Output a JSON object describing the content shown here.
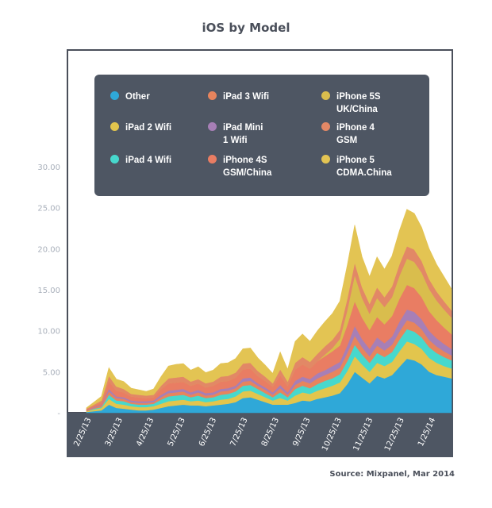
{
  "title": "iOS by Model",
  "source": "Source: Mixpanel, Mar 2014",
  "chart_data": {
    "type": "area",
    "stacked": true,
    "title": "iOS by Model",
    "ylim": [
      0,
      32
    ],
    "yticks": [
      "",
      "5.00",
      "10.00",
      "15.00",
      "20.00",
      "25.00",
      "30.00"
    ],
    "ytick_values": [
      0,
      5,
      10,
      15,
      20,
      25,
      30
    ],
    "x_tick_labels": [
      "2/25/13",
      "3/25/13",
      "4/25/13",
      "5/25/13",
      "6/25/13",
      "7/25/13",
      "8/25/13",
      "9/25/13",
      "10/25/13",
      "11/25/13",
      "12/25/13",
      "1/25/14"
    ],
    "x_tick_positions": [
      0.2,
      4.4,
      8.6,
      12.8,
      17.0,
      21.2,
      25.4,
      29.6,
      33.8,
      38.0,
      42.2,
      46.4
    ],
    "x_range": [
      0,
      49
    ],
    "x_index": [
      0,
      1,
      2,
      3,
      4,
      5,
      6,
      7,
      8,
      9,
      10,
      11,
      12,
      13,
      14,
      15,
      16,
      17,
      18,
      19,
      20,
      21,
      22,
      23,
      24,
      25,
      26,
      27,
      28,
      29,
      30,
      31,
      32,
      33,
      34,
      35,
      36,
      37,
      38,
      39,
      40,
      41,
      42,
      43,
      44,
      45,
      46,
      47,
      48,
      49
    ],
    "legend_position": "top",
    "series": [
      {
        "name": "Other",
        "color": "#2fa8d8",
        "values": [
          0.1,
          0.2,
          0.3,
          1.0,
          0.6,
          0.5,
          0.4,
          0.3,
          0.3,
          0.4,
          0.6,
          0.8,
          0.9,
          1.0,
          0.9,
          0.9,
          0.8,
          0.9,
          1.0,
          1.1,
          1.3,
          1.8,
          1.9,
          1.6,
          1.3,
          1.0,
          1.0,
          1.0,
          1.2,
          1.5,
          1.4,
          1.7,
          1.9,
          2.1,
          2.4,
          3.5,
          5.0,
          4.3,
          3.6,
          4.5,
          4.2,
          4.6,
          5.6,
          6.6,
          6.4,
          5.9,
          5.0,
          4.6,
          4.4,
          4.2
        ]
      },
      {
        "name": "iPad 2 Wifi",
        "color": "#e2c54d",
        "values": [
          0.1,
          0.2,
          0.3,
          0.7,
          0.5,
          0.5,
          0.4,
          0.4,
          0.4,
          0.4,
          0.5,
          0.6,
          0.6,
          0.6,
          0.5,
          0.6,
          0.5,
          0.5,
          0.6,
          0.6,
          0.7,
          0.8,
          0.8,
          0.7,
          0.6,
          0.5,
          0.8,
          0.5,
          0.9,
          1.0,
          0.9,
          1.0,
          1.1,
          1.2,
          1.3,
          1.6,
          1.9,
          1.6,
          1.4,
          1.6,
          1.5,
          1.6,
          1.9,
          2.1,
          2.0,
          1.9,
          1.7,
          1.5,
          1.3,
          1.2
        ]
      },
      {
        "name": "iPad 4 Wifi",
        "color": "#47d8cd",
        "values": [
          0.0,
          0.1,
          0.1,
          0.5,
          0.4,
          0.4,
          0.3,
          0.3,
          0.3,
          0.3,
          0.5,
          0.6,
          0.6,
          0.6,
          0.5,
          0.6,
          0.5,
          0.5,
          0.6,
          0.6,
          0.6,
          0.7,
          0.7,
          0.6,
          0.5,
          0.4,
          0.7,
          0.4,
          0.8,
          0.8,
          0.7,
          0.8,
          0.9,
          0.9,
          1.0,
          1.2,
          1.4,
          1.2,
          1.1,
          1.2,
          1.1,
          1.2,
          1.4,
          1.5,
          1.5,
          1.4,
          1.3,
          1.2,
          1.1,
          1.0
        ]
      },
      {
        "name": "iPad 3 Wifi",
        "color": "#e7845d",
        "values": [
          0.1,
          0.1,
          0.2,
          0.4,
          0.3,
          0.3,
          0.2,
          0.2,
          0.2,
          0.2,
          0.3,
          0.4,
          0.4,
          0.4,
          0.3,
          0.4,
          0.3,
          0.3,
          0.4,
          0.4,
          0.4,
          0.5,
          0.5,
          0.4,
          0.4,
          0.3,
          0.5,
          0.3,
          0.5,
          0.6,
          0.6,
          0.7,
          0.7,
          0.8,
          0.8,
          1.0,
          1.1,
          0.9,
          0.8,
          0.9,
          0.8,
          0.9,
          1.0,
          1.1,
          1.1,
          1.0,
          0.9,
          0.8,
          0.7,
          0.6
        ]
      },
      {
        "name": "iPad Mini\n1 Wifi",
        "color": "#a77fb6",
        "values": [
          0.0,
          0.1,
          0.1,
          0.3,
          0.2,
          0.2,
          0.2,
          0.2,
          0.2,
          0.2,
          0.3,
          0.3,
          0.3,
          0.3,
          0.3,
          0.3,
          0.3,
          0.3,
          0.3,
          0.3,
          0.3,
          0.4,
          0.4,
          0.3,
          0.3,
          0.3,
          0.4,
          0.3,
          0.5,
          0.5,
          0.5,
          0.6,
          0.6,
          0.7,
          0.7,
          0.9,
          1.2,
          1.0,
          0.9,
          1.0,
          0.9,
          1.0,
          1.2,
          1.3,
          1.3,
          1.2,
          1.1,
          1.0,
          0.9,
          0.8
        ]
      },
      {
        "name": "iPhone 4S\nGSM/China",
        "color": "#e97d63",
        "values": [
          0.1,
          0.2,
          0.3,
          1.0,
          0.7,
          0.6,
          0.5,
          0.5,
          0.4,
          0.4,
          0.7,
          0.9,
          0.9,
          0.9,
          0.8,
          0.8,
          0.7,
          0.8,
          0.9,
          0.9,
          1.0,
          1.1,
          1.1,
          0.9,
          0.8,
          0.7,
          1.2,
          0.8,
          1.4,
          1.5,
          1.3,
          1.5,
          1.7,
          1.8,
          2.0,
          2.5,
          3.0,
          2.6,
          2.3,
          2.5,
          2.3,
          2.5,
          2.8,
          3.0,
          2.9,
          2.7,
          2.4,
          2.2,
          2.0,
          1.8
        ]
      },
      {
        "name": "iPhone 5S\nUK/China",
        "color": "#d9bd4d",
        "values": [
          0,
          0,
          0,
          0,
          0,
          0,
          0,
          0,
          0,
          0,
          0,
          0,
          0,
          0,
          0,
          0,
          0,
          0,
          0,
          0,
          0,
          0,
          0,
          0,
          0,
          0,
          0,
          0,
          0,
          0,
          0,
          0,
          0.2,
          0.4,
          0.8,
          1.8,
          3.2,
          2.4,
          2.0,
          2.3,
          2.1,
          2.3,
          2.8,
          3.2,
          3.2,
          3.0,
          2.7,
          2.4,
          2.2,
          2.0
        ]
      },
      {
        "name": "iPhone 4\nGSM",
        "color": "#e28866",
        "values": [
          0.1,
          0.1,
          0.2,
          0.6,
          0.5,
          0.4,
          0.3,
          0.3,
          0.3,
          0.3,
          0.4,
          0.6,
          0.6,
          0.6,
          0.5,
          0.5,
          0.5,
          0.5,
          0.6,
          0.6,
          0.6,
          0.7,
          0.7,
          0.6,
          0.5,
          0.4,
          0.7,
          0.5,
          0.8,
          0.9,
          0.8,
          0.9,
          1.0,
          1.0,
          1.1,
          1.4,
          1.5,
          1.3,
          1.2,
          1.3,
          1.2,
          1.3,
          1.4,
          1.5,
          1.5,
          1.4,
          1.2,
          1.1,
          1.0,
          0.9
        ]
      },
      {
        "name": "iPhone 5\nCDMA.China",
        "color": "#e3c453",
        "values": [
          0.1,
          0.3,
          0.5,
          1.0,
          0.9,
          0.9,
          0.7,
          0.6,
          0.5,
          0.7,
          1.1,
          1.5,
          1.6,
          1.6,
          1.4,
          1.5,
          1.3,
          1.4,
          1.6,
          1.6,
          1.7,
          1.8,
          1.8,
          1.6,
          1.4,
          1.2,
          2.1,
          1.5,
          2.6,
          2.8,
          2.5,
          2.8,
          3.0,
          3.2,
          3.5,
          4.1,
          4.6,
          3.7,
          3.3,
          3.7,
          3.4,
          3.7,
          4.1,
          4.5,
          4.4,
          4.1,
          3.7,
          3.3,
          3.0,
          2.6
        ]
      }
    ]
  }
}
